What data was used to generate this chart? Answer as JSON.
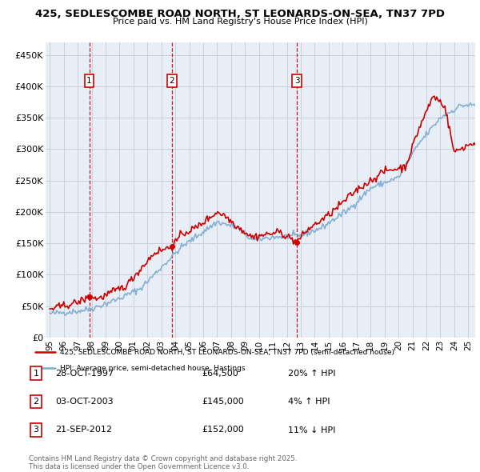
{
  "title1": "425, SEDLESCOMBE ROAD NORTH, ST LEONARDS-ON-SEA, TN37 7PD",
  "title2": "Price paid vs. HM Land Registry's House Price Index (HPI)",
  "ylabel_ticks": [
    "£0",
    "£50K",
    "£100K",
    "£150K",
    "£200K",
    "£250K",
    "£300K",
    "£350K",
    "£400K",
    "£450K"
  ],
  "ytick_values": [
    0,
    50000,
    100000,
    150000,
    200000,
    250000,
    300000,
    350000,
    400000,
    450000
  ],
  "ylim": [
    0,
    470000
  ],
  "xlim_start": 1994.7,
  "xlim_end": 2025.5,
  "xtick_years": [
    1995,
    1996,
    1997,
    1998,
    1999,
    2000,
    2001,
    2002,
    2003,
    2004,
    2005,
    2006,
    2007,
    2008,
    2009,
    2010,
    2011,
    2012,
    2013,
    2014,
    2015,
    2016,
    2017,
    2018,
    2019,
    2020,
    2021,
    2022,
    2023,
    2024,
    2025
  ],
  "sale_dates": [
    1997.83,
    2003.75,
    2012.72
  ],
  "sale_prices": [
    64500,
    145000,
    152000
  ],
  "sale_labels": [
    "1",
    "2",
    "3"
  ],
  "vline_color": "#cc0000",
  "hpi_color": "#7aaad0",
  "price_color": "#cc0000",
  "grid_color": "#ccccdd",
  "bg_color": "#e8eef5",
  "legend1": "425, SEDLESCOMBE ROAD NORTH, ST LEONARDS-ON-SEA, TN37 7PD (semi-detached house)",
  "legend2": "HPI: Average price, semi-detached house, Hastings",
  "sale_info": [
    {
      "num": "1",
      "date": "28-OCT-1997",
      "price": "£64,500",
      "hpi": "20% ↑ HPI"
    },
    {
      "num": "2",
      "date": "03-OCT-2003",
      "price": "£145,000",
      "hpi": "4% ↑ HPI"
    },
    {
      "num": "3",
      "date": "21-SEP-2012",
      "price": "£152,000",
      "hpi": "11% ↓ HPI"
    }
  ],
  "footer": "Contains HM Land Registry data © Crown copyright and database right 2025.\nThis data is licensed under the Open Government Licence v3.0."
}
